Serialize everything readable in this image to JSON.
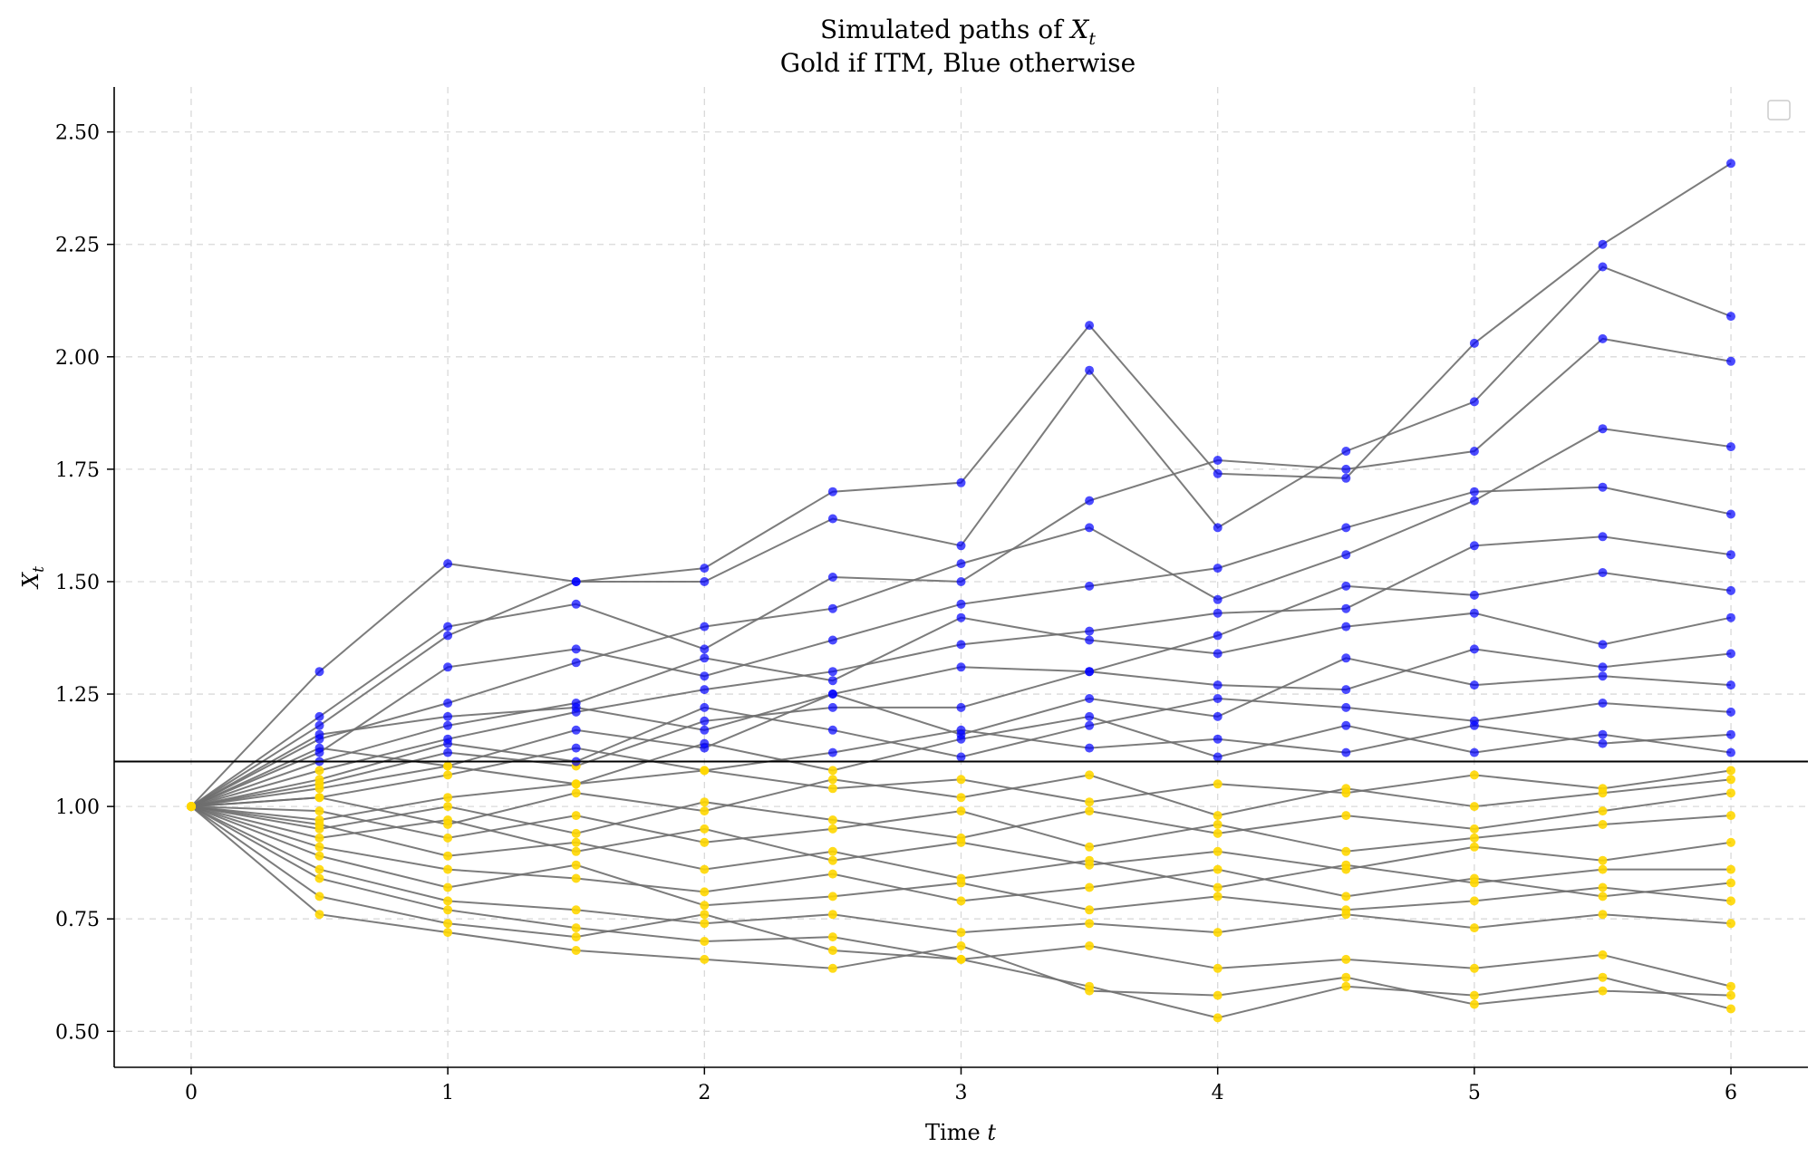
{
  "chart_data": {
    "type": "line",
    "title": "Simulated paths of",
    "title_math": "X",
    "title_math_sub": "t",
    "subtitle": "Gold if ITM, Blue otherwise",
    "xlabel": "Time",
    "xlabel_math": "t",
    "ylabel": "X",
    "ylabel_sub": "t",
    "xlim": [
      -0.3,
      6.3
    ],
    "ylim": [
      0.42,
      2.6
    ],
    "xticks": [
      "0",
      "1",
      "2",
      "3",
      "4",
      "5",
      "6"
    ],
    "yticks": [
      "0.50",
      "0.75",
      "1.00",
      "1.25",
      "1.50",
      "1.75",
      "2.00",
      "2.25",
      "2.50"
    ],
    "grid": true,
    "legend": "top-right (empty)",
    "threshold": 1.1,
    "colors": {
      "itm": "#FFD700",
      "otm": "#0000FF",
      "line": "#6e6e6e",
      "threshold": "#000000",
      "grid": "#d9d9d9"
    },
    "x": [
      0.0,
      0.5,
      1.0,
      1.5,
      2.0,
      2.5,
      3.0,
      3.5,
      4.0,
      4.5,
      5.0,
      5.5,
      6.0
    ],
    "series": [
      {
        "values": [
          1.0,
          1.3,
          1.54,
          1.5,
          1.53,
          1.7,
          1.72,
          2.07,
          1.74,
          1.73,
          2.03,
          2.25,
          2.43
        ]
      },
      {
        "values": [
          1.0,
          1.18,
          1.38,
          1.5,
          1.5,
          1.64,
          1.58,
          1.97,
          1.62,
          1.79,
          1.9,
          2.2,
          2.09
        ]
      },
      {
        "values": [
          1.0,
          1.2,
          1.4,
          1.45,
          1.35,
          1.51,
          1.5,
          1.68,
          1.77,
          1.75,
          1.79,
          2.04,
          1.99
        ]
      },
      {
        "values": [
          1.0,
          1.15,
          1.23,
          1.32,
          1.4,
          1.44,
          1.54,
          1.62,
          1.46,
          1.56,
          1.68,
          1.84,
          1.8
        ]
      },
      {
        "values": [
          1.0,
          1.12,
          1.31,
          1.35,
          1.29,
          1.37,
          1.45,
          1.49,
          1.53,
          1.62,
          1.7,
          1.71,
          1.65
        ]
      },
      {
        "values": [
          1.0,
          1.08,
          1.15,
          1.21,
          1.26,
          1.3,
          1.36,
          1.39,
          1.43,
          1.44,
          1.58,
          1.6,
          1.56
        ]
      },
      {
        "values": [
          1.0,
          1.16,
          1.2,
          1.22,
          1.17,
          1.25,
          1.31,
          1.3,
          1.38,
          1.49,
          1.47,
          1.52,
          1.48
        ]
      },
      {
        "values": [
          1.0,
          1.1,
          1.18,
          1.23,
          1.33,
          1.28,
          1.42,
          1.37,
          1.34,
          1.4,
          1.43,
          1.36,
          1.42
        ]
      },
      {
        "values": [
          1.0,
          1.05,
          1.12,
          1.09,
          1.19,
          1.22,
          1.22,
          1.3,
          1.27,
          1.26,
          1.35,
          1.31,
          1.34
        ]
      },
      {
        "values": [
          1.0,
          1.13,
          1.09,
          1.17,
          1.13,
          1.25,
          1.16,
          1.24,
          1.2,
          1.33,
          1.27,
          1.29,
          1.27
        ]
      },
      {
        "values": [
          1.0,
          1.06,
          1.14,
          1.1,
          1.22,
          1.17,
          1.11,
          1.18,
          1.24,
          1.22,
          1.19,
          1.23,
          1.21
        ]
      },
      {
        "values": [
          1.0,
          1.02,
          1.07,
          1.13,
          1.08,
          1.12,
          1.17,
          1.13,
          1.15,
          1.12,
          1.18,
          1.14,
          1.16
        ]
      },
      {
        "values": [
          1.0,
          1.04,
          1.09,
          1.05,
          1.14,
          1.08,
          1.15,
          1.2,
          1.11,
          1.18,
          1.12,
          1.16,
          1.12
        ]
      },
      {
        "values": [
          1.0,
          0.97,
          1.02,
          1.05,
          1.08,
          1.04,
          1.06,
          1.01,
          1.05,
          1.03,
          1.07,
          1.04,
          1.08
        ]
      },
      {
        "values": [
          1.0,
          1.02,
          0.96,
          1.03,
          0.99,
          1.06,
          1.02,
          1.07,
          0.98,
          1.04,
          1.0,
          1.03,
          1.06
        ]
      },
      {
        "values": [
          1.0,
          0.95,
          1.0,
          0.94,
          1.01,
          0.97,
          0.93,
          0.99,
          0.94,
          0.98,
          0.95,
          0.99,
          1.03
        ]
      },
      {
        "values": [
          1.0,
          0.99,
          0.93,
          0.98,
          0.92,
          0.95,
          0.99,
          0.91,
          0.96,
          0.9,
          0.93,
          0.96,
          0.98
        ]
      },
      {
        "values": [
          1.0,
          0.93,
          0.97,
          0.9,
          0.95,
          0.88,
          0.92,
          0.87,
          0.9,
          0.86,
          0.91,
          0.88,
          0.92
        ]
      },
      {
        "values": [
          1.0,
          0.96,
          0.89,
          0.92,
          0.86,
          0.9,
          0.84,
          0.88,
          0.82,
          0.87,
          0.83,
          0.86,
          0.86
        ]
      },
      {
        "values": [
          1.0,
          0.91,
          0.86,
          0.84,
          0.81,
          0.85,
          0.79,
          0.82,
          0.86,
          0.8,
          0.84,
          0.8,
          0.83
        ]
      },
      {
        "values": [
          1.0,
          0.89,
          0.82,
          0.87,
          0.78,
          0.8,
          0.83,
          0.77,
          0.8,
          0.77,
          0.79,
          0.82,
          0.79
        ]
      },
      {
        "values": [
          1.0,
          0.86,
          0.79,
          0.77,
          0.74,
          0.76,
          0.72,
          0.74,
          0.72,
          0.76,
          0.73,
          0.76,
          0.74
        ]
      },
      {
        "values": [
          1.0,
          0.8,
          0.74,
          0.71,
          0.76,
          0.68,
          0.66,
          0.69,
          0.64,
          0.66,
          0.64,
          0.67,
          0.6
        ]
      },
      {
        "values": [
          1.0,
          0.76,
          0.72,
          0.68,
          0.66,
          0.64,
          0.69,
          0.59,
          0.58,
          0.62,
          0.56,
          0.59,
          0.58
        ]
      },
      {
        "values": [
          1.0,
          0.84,
          0.77,
          0.73,
          0.7,
          0.71,
          0.66,
          0.6,
          0.53,
          0.6,
          0.58,
          0.62,
          0.55
        ]
      }
    ]
  }
}
